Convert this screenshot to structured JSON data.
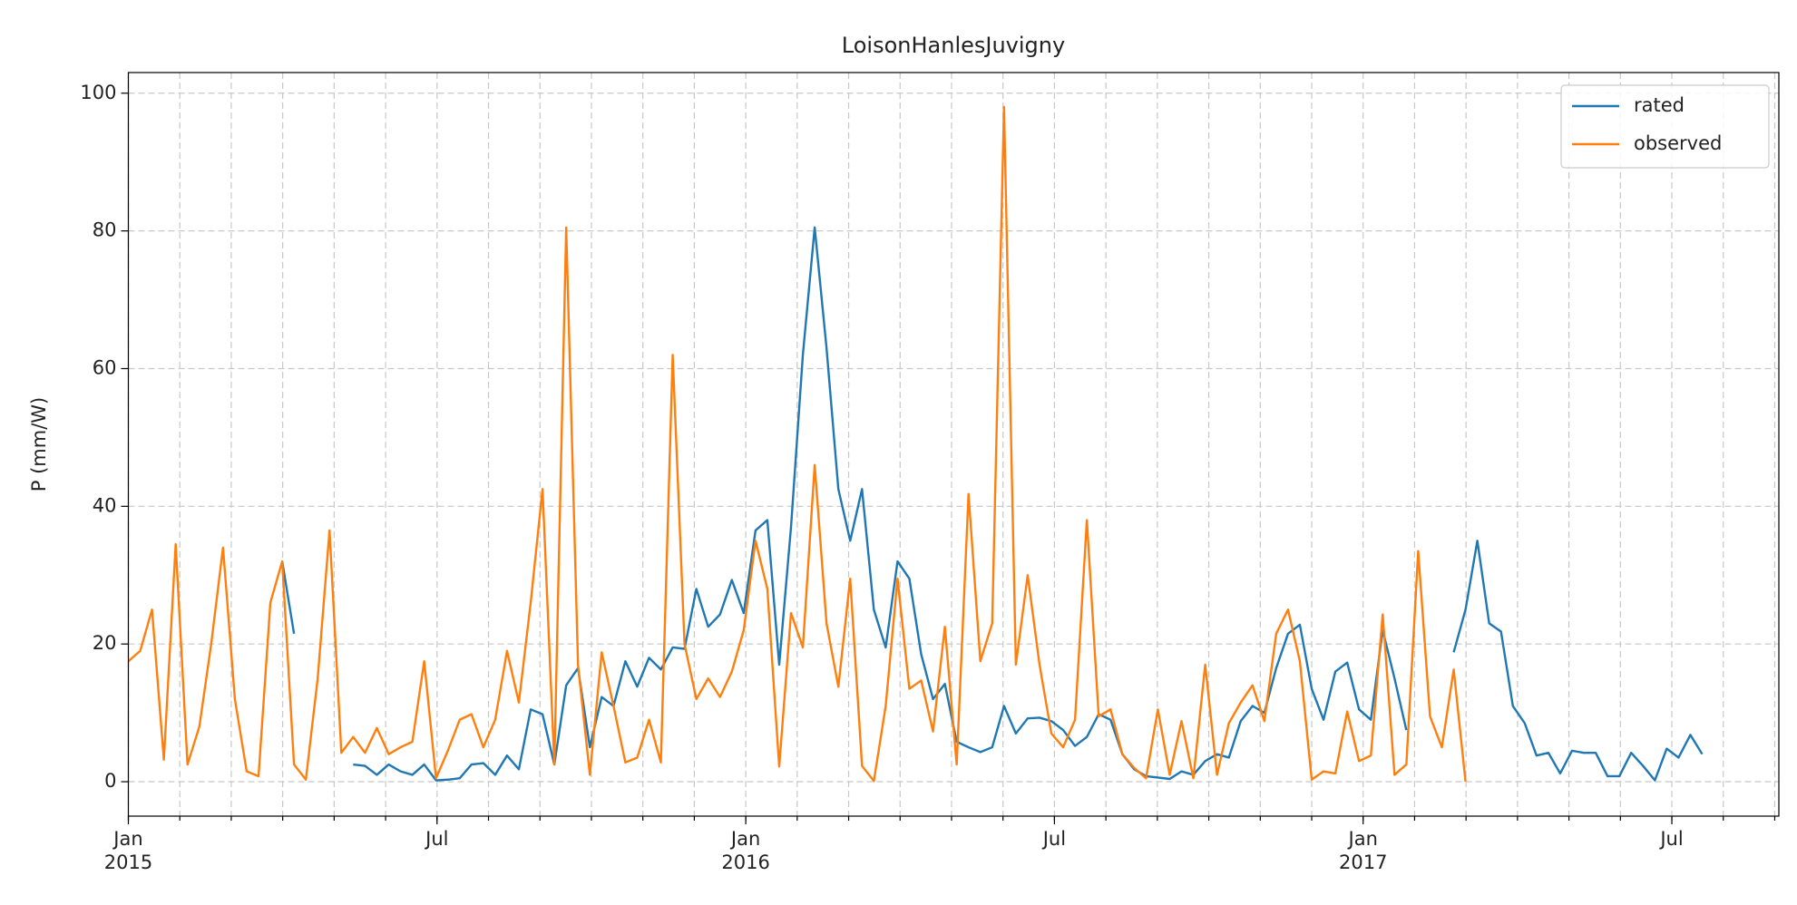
{
  "chart_data": {
    "type": "line",
    "title": "LoisonHanlesJuvigny",
    "ylabel": "P (mm/W)",
    "x": [
      0,
      0.23,
      0.46,
      0.69,
      0.92,
      1.15,
      1.38,
      1.61,
      1.84,
      2.07,
      2.3,
      2.53,
      2.76,
      2.99,
      3.22,
      3.45,
      3.68,
      3.91,
      4.14,
      4.37,
      4.6,
      4.83,
      5.06,
      5.29,
      5.52,
      5.75,
      5.98,
      6.21,
      6.44,
      6.67,
      6.9,
      7.13,
      7.36,
      7.59,
      7.82,
      8.05,
      8.28,
      8.51,
      8.74,
      8.97,
      9.2,
      9.43,
      9.66,
      9.89,
      10.12,
      10.35,
      10.58,
      10.81,
      11.04,
      11.27,
      11.5,
      11.73,
      11.96,
      12.19,
      12.42,
      12.65,
      12.88,
      13.11,
      13.34,
      13.57,
      13.8,
      14.03,
      14.26,
      14.49,
      14.72,
      14.95,
      15.18,
      15.41,
      15.64,
      15.87,
      16.1,
      16.33,
      16.56,
      16.79,
      17.02,
      17.25,
      17.48,
      17.71,
      17.94,
      18.17,
      18.4,
      18.63,
      18.86,
      19.09,
      19.32,
      19.55,
      19.78,
      20.01,
      20.24,
      20.47,
      20.7,
      20.93,
      21.16,
      21.39,
      21.62,
      21.85,
      22.08,
      22.31,
      22.54,
      22.77,
      23.0,
      23.23,
      23.46,
      23.69,
      23.92,
      24.15,
      24.38,
      24.61,
      24.84,
      25.07,
      25.3,
      25.53,
      25.76,
      25.99,
      26.22,
      26.45,
      26.68,
      26.91,
      27.14,
      27.37,
      27.6,
      27.83,
      28.06,
      28.29,
      28.52,
      28.75,
      28.98,
      29.21,
      29.44,
      29.67,
      29.9,
      30.13,
      30.36,
      30.59
    ],
    "series": [
      {
        "name": "rated",
        "color": "#1f77b4",
        "values": [
          null,
          null,
          null,
          null,
          null,
          null,
          null,
          null,
          null,
          null,
          null,
          null,
          null,
          32,
          21.5,
          null,
          null,
          null,
          null,
          2.5,
          2.3,
          1,
          2.5,
          1.5,
          1,
          2.5,
          0.2,
          0.3,
          0.5,
          2.5,
          2.7,
          1,
          3.8,
          1.8,
          10.5,
          9.8,
          2.5,
          14,
          16.5,
          5,
          12.3,
          11,
          17.5,
          13.8,
          18,
          16.3,
          19.5,
          19.3,
          28,
          22.5,
          24.3,
          29.3,
          24.5,
          36.5,
          38,
          17,
          37,
          62,
          80.5,
          63,
          42.5,
          35,
          42.5,
          25,
          19.5,
          32,
          29.5,
          18.5,
          12,
          14.2,
          5.8,
          5,
          4.3,
          5,
          11,
          7,
          9.2,
          9.3,
          8.8,
          7.5,
          5.2,
          6.5,
          9.8,
          9,
          4,
          1.8,
          0.8,
          0.6,
          0.4,
          1.5,
          1,
          3,
          4,
          3.5,
          8.8,
          11,
          10,
          16.5,
          21.5,
          22.8,
          13.5,
          9,
          16,
          17.3,
          10.5,
          9,
          22,
          15,
          7.5,
          null,
          null,
          null,
          18.8,
          25,
          35,
          23,
          21.8,
          11,
          8.5,
          3.8,
          4.2,
          1.2,
          4.5,
          4.2,
          4.2,
          0.8,
          0.8,
          4.2,
          2.3,
          0.2,
          4.8,
          3.5,
          6.8,
          4
        ]
      },
      {
        "name": "observed",
        "color": "#ff7f0e",
        "values": [
          17.5,
          19,
          25,
          3.2,
          34.5,
          2.5,
          8,
          20,
          34,
          12,
          1.5,
          0.8,
          26,
          32,
          2.5,
          0.3,
          15,
          36.5,
          4.2,
          6.5,
          4.2,
          7.8,
          4,
          5,
          5.8,
          17.5,
          0.5,
          4.5,
          9,
          9.8,
          5,
          9,
          19,
          11.5,
          26,
          42.5,
          2.5,
          80.5,
          17,
          1,
          18.8,
          11,
          2.8,
          3.5,
          9,
          2.8,
          62,
          20,
          12,
          15,
          12.3,
          16,
          22,
          35,
          28,
          2.2,
          24.5,
          19.5,
          46,
          23,
          13.8,
          29.5,
          2.3,
          0.1,
          11,
          29.5,
          13.5,
          14.7,
          7.3,
          22.5,
          2.5,
          41.8,
          17.5,
          23,
          98,
          17,
          30,
          17,
          7,
          5,
          9,
          38,
          9.5,
          10.5,
          4,
          2,
          0.5,
          10.5,
          1,
          8.8,
          0.5,
          17,
          1,
          8.5,
          11.5,
          14,
          8.8,
          21.5,
          25,
          17.5,
          0.3,
          1.5,
          1.2,
          10.2,
          3,
          3.8,
          24.3,
          1,
          2.5,
          33.5,
          9.5,
          5,
          16.3,
          0,
          null,
          null,
          null,
          null,
          null,
          null,
          null,
          null,
          null,
          null,
          null,
          null,
          null,
          null,
          null,
          null,
          null,
          null,
          null,
          null
        ]
      }
    ],
    "xlim": [
      0,
      32.08
    ],
    "xticks": [
      {
        "value": 0,
        "label": "Jan\n2015"
      },
      {
        "value": 6,
        "label": "Jul"
      },
      {
        "value": 12,
        "label": "Jan\n2016"
      },
      {
        "value": 18,
        "label": "Jul"
      },
      {
        "value": 24,
        "label": "Jan\n2017"
      },
      {
        "value": 30,
        "label": "Jul"
      }
    ],
    "xminorticks": [
      0,
      1,
      2,
      3,
      4,
      5,
      6,
      7,
      8,
      9,
      10,
      11,
      12,
      13,
      14,
      15,
      16,
      17,
      18,
      19,
      20,
      21,
      22,
      23,
      24,
      25,
      26,
      27,
      28,
      29,
      30,
      31,
      32
    ],
    "ylim": [
      -5,
      103
    ],
    "yticks": [
      0,
      20,
      40,
      60,
      80,
      100
    ],
    "grid": true,
    "legend": "upper right"
  }
}
